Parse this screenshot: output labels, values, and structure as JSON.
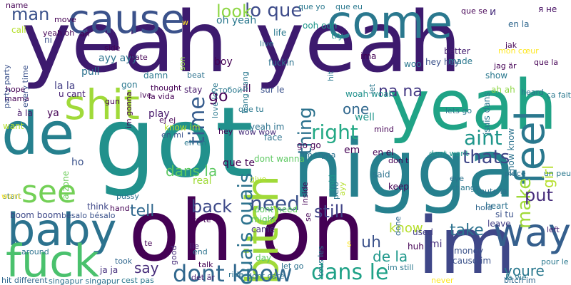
{
  "words": [
    {
      "text": "yeah yeah",
      "color": "#3d1a6e"
    },
    {
      "text": "got",
      "color": "#21918c"
    },
    {
      "text": "nigga",
      "color": "#26808e"
    },
    {
      "text": "oh oh",
      "color": "#440154"
    },
    {
      "text": "de",
      "color": "#26808e"
    },
    {
      "text": "yeah",
      "color": "#20a386"
    },
    {
      "text": "im",
      "color": "#3f4788"
    },
    {
      "text": "come",
      "color": "#2a788e"
    },
    {
      "text": "cause",
      "color": "#3b528b"
    },
    {
      "text": "shit",
      "color": "#a0da39"
    },
    {
      "text": "bitch",
      "color": "#a0da39"
    },
    {
      "text": "baby",
      "color": "#2c728e"
    },
    {
      "text": "fuck",
      "color": "#4ac16d"
    },
    {
      "text": "feel",
      "color": "#2a788e"
    },
    {
      "text": "see",
      "color": "#73d056"
    },
    {
      "text": "way",
      "color": "#355f8d"
    },
    {
      "text": "dont know",
      "color": "#31688e"
    },
    {
      "text": "dans le",
      "color": "#1fa187"
    },
    {
      "text": "time",
      "color": "#365c8d"
    },
    {
      "text": "ouais ouais",
      "color": "#2c728e"
    },
    {
      "text": "need",
      "color": "#3b528b"
    },
    {
      "text": "right",
      "color": "#22a884"
    },
    {
      "text": "make",
      "color": "#a0da39"
    },
    {
      "text": "thing",
      "color": "#2c728e"
    },
    {
      "text": "aint",
      "color": "#1f968b"
    },
    {
      "text": "lo que",
      "color": "#3e4c8a"
    },
    {
      "text": "look",
      "color": "#8ed645"
    },
    {
      "text": "man",
      "color": "#3b528b"
    },
    {
      "text": "go",
      "color": "#440154"
    },
    {
      "text": "thats",
      "color": "#3f4788"
    },
    {
      "text": "na na",
      "color": "#443983"
    },
    {
      "text": "back",
      "color": "#3e4a89"
    },
    {
      "text": "tell",
      "color": "#31688e"
    },
    {
      "text": "still",
      "color": "#414487"
    },
    {
      "text": "put",
      "color": "#472d7b"
    },
    {
      "text": "take",
      "color": "#2c728e"
    },
    {
      "text": "uh",
      "color": "#3b528b"
    },
    {
      "text": "de la",
      "color": "#1f988b"
    },
    {
      "text": "youre",
      "color": "#2a788e"
    },
    {
      "text": "say",
      "color": "#472d7b"
    },
    {
      "text": "dans la",
      "color": "#5ec962"
    },
    {
      "text": "girl",
      "color": "#b5de2b"
    },
    {
      "text": "know",
      "color": "#b5de2b"
    },
    {
      "text": "one",
      "color": "#31688e"
    },
    {
      "text": "oh yeah",
      "color": "#2a788e"
    },
    {
      "text": "la la",
      "color": "#433e85"
    },
    {
      "text": "ayy ayy",
      "color": "#2c728e"
    },
    {
      "text": "pull",
      "color": "#2c728e"
    },
    {
      "text": "play",
      "color": "#481a6c"
    },
    {
      "text": "boy",
      "color": "#440154"
    },
    {
      "text": "que te",
      "color": "#440154"
    },
    {
      "text": "em",
      "color": "#440154"
    },
    {
      "text": "mi",
      "color": "#46307e"
    },
    {
      "text": "ya",
      "color": "#440154"
    },
    {
      "text": "boom boom",
      "color": "#3e4989"
    },
    {
      "text": "real",
      "color": "#a0da39"
    },
    {
      "text": "think",
      "color": "#3f4788"
    },
    {
      "text": "came",
      "color": "#46307e"
    },
    {
      "text": "keep",
      "color": "#440154"
    },
    {
      "text": "said",
      "color": "#2c728e"
    },
    {
      "text": "face",
      "color": "#2c728e"
    },
    {
      "text": "ill",
      "color": "#440154"
    },
    {
      "text": "well",
      "color": "#1f968b"
    },
    {
      "text": "told",
      "color": "#1f968b"
    },
    {
      "text": "la zone",
      "color": "#6ccd5a"
    },
    {
      "text": "ho",
      "color": "#3b528b"
    },
    {
      "text": "want",
      "color": "#b5de2b"
    },
    {
      "text": "à la",
      "color": "#481a6c"
    },
    {
      "text": "u cant",
      "color": "#482173"
    },
    {
      "text": "gon",
      "color": "#2a788e"
    },
    {
      "text": "life",
      "color": "#2a788e"
    },
    {
      "text": "ooh ooh",
      "color": "#1f968b"
    },
    {
      "text": "try",
      "color": "#1f968b"
    },
    {
      "text": "woo",
      "color": "#2a788e"
    },
    {
      "text": "hey hey",
      "color": "#3b528b"
    },
    {
      "text": "jsuis dans",
      "color": "#2a788e"
    },
    {
      "text": "ima",
      "color": "#440154"
    },
    {
      "text": "better",
      "color": "#482173"
    },
    {
      "text": "made",
      "color": "#2a788e"
    },
    {
      "text": "en la",
      "color": "#31688e"
    },
    {
      "text": "и",
      "color": "#472d7b"
    },
    {
      "text": "я не",
      "color": "#471164"
    },
    {
      "text": "love love",
      "color": "#2a788e"
    },
    {
      "text": "fuckin",
      "color": "#2c728e"
    },
    {
      "text": "damn",
      "color": "#2a788e"
    },
    {
      "text": "call",
      "color": "#b5de2b"
    },
    {
      "text": "ni",
      "color": "#3b528b"
    },
    {
      "text": "stay",
      "color": "#481a6c"
    },
    {
      "text": "know im",
      "color": "#b5de2b"
    },
    {
      "text": "dont wanna",
      "color": "#5ec962"
    },
    {
      "text": "yeah im",
      "color": "#2c728e"
    },
    {
      "text": "woah woah",
      "color": "#21918c"
    },
    {
      "text": "sur le",
      "color": "#3b528b"
    },
    {
      "text": "show",
      "color": "#2a788e"
    },
    {
      "text": "ah ah",
      "color": "#8ed645"
    },
    {
      "text": "know know",
      "color": "#2c728e"
    },
    {
      "text": "heart",
      "color": "#2c728e"
    },
    {
      "text": "leave",
      "color": "#433e85"
    },
    {
      "text": "si tu",
      "color": "#3b528b"
    },
    {
      "text": "money",
      "color": "#3b528b"
    },
    {
      "text": "cause im",
      "color": "#3b528b"
    },
    {
      "text": "never",
      "color": "#fde725"
    },
    {
      "text": "im still",
      "color": "#2a788e"
    },
    {
      "text": "huh",
      "color": "#440154"
    },
    {
      "text": "used",
      "color": "#433e85"
    },
    {
      "text": "day",
      "color": "#5ec962"
    },
    {
      "text": "might",
      "color": "#5ec962"
    },
    {
      "text": "dont need",
      "color": "#5ec962"
    },
    {
      "text": "go go",
      "color": "#440154"
    },
    {
      "text": "tous les",
      "color": "#2a788e"
    },
    {
      "text": "ja ja",
      "color": "#46307e"
    },
    {
      "text": "talk",
      "color": "#440154"
    },
    {
      "text": "en el",
      "color": "#440154"
    },
    {
      "text": "pero",
      "color": "#2a788e"
    },
    {
      "text": "ayy",
      "color": "#b5de2b"
    },
    {
      "text": "place",
      "color": "#2c728e"
    },
    {
      "text": "eye",
      "color": "#2c728e"
    },
    {
      "text": "pussy",
      "color": "#2c728e"
    },
    {
      "text": "start",
      "color": "#2c728e"
    },
    {
      "text": "hand",
      "color": "#440154"
    },
    {
      "text": "toute la",
      "color": "#2c728e"
    },
    {
      "text": "hold",
      "color": "#31688e"
    },
    {
      "text": "lets go",
      "color": "#2a788e"
    },
    {
      "text": "dont want",
      "color": "#1f968b"
    },
    {
      "text": "im tryna",
      "color": "#2c728e"
    },
    {
      "text": "singapur singapur",
      "color": "#2c728e"
    },
    {
      "text": "hit different",
      "color": "#31688e"
    },
    {
      "text": "bésalo bésalo",
      "color": "#3b528b"
    },
    {
      "text": "around",
      "color": "#2c728e"
    },
    {
      "text": "took",
      "color": "#31688e"
    },
    {
      "text": "give",
      "color": "#b5de2b"
    },
    {
      "text": "change",
      "color": "#2a788e"
    },
    {
      "text": "done",
      "color": "#31688e"
    },
    {
      "text": "hey",
      "color": "#440154"
    },
    {
      "text": "wow wow",
      "color": "#472d7b"
    },
    {
      "text": "end",
      "color": "#2c728e"
    },
    {
      "text": "ride",
      "color": "#2c728e"
    },
    {
      "text": "dont care",
      "color": "#2c728e"
    },
    {
      "text": "let go",
      "color": "#2c728e"
    },
    {
      "text": "good",
      "color": "#472d7b"
    },
    {
      "text": "lie",
      "color": "#472d7b"
    },
    {
      "text": "si te",
      "color": "#440154"
    },
    {
      "text": "yo te",
      "color": "#440154"
    },
    {
      "text": "det är",
      "color": "#482173"
    },
    {
      "text": "cest pas",
      "color": "#2a788e"
    },
    {
      "text": "bitch im",
      "color": "#31688e"
    },
    {
      "text": "la vie",
      "color": "#2a788e"
    },
    {
      "text": "pour le",
      "color": "#2a788e"
    },
    {
      "text": "un peu",
      "color": "#2a788e"
    },
    {
      "text": "left",
      "color": "#482173"
    },
    {
      "text": "ça fait",
      "color": "#2a788e"
    },
    {
      "text": "heard",
      "color": "#2c728e"
    },
    {
      "text": "jag är",
      "color": "#440154"
    },
    {
      "text": "jak",
      "color": "#440154"
    },
    {
      "text": "mon cœur",
      "color": "#fde725"
    },
    {
      "text": "que la",
      "color": "#440154"
    },
    {
      "text": "que se",
      "color": "#440154"
    },
    {
      "text": "que eu",
      "color": "#2a788e"
    },
    {
      "text": "que yo",
      "color": "#2a788e"
    },
    {
      "text": "que tu",
      "color": "#2a788e"
    },
    {
      "text": "с тобой",
      "color": "#2a788e"
    },
    {
      "text": "bang bang",
      "color": "#2a788e"
    },
    {
      "text": "live",
      "color": "#2a788e"
    },
    {
      "text": "beat",
      "color": "#2c728e"
    },
    {
      "text": "son",
      "color": "#8ed645"
    },
    {
      "text": "thought",
      "color": "#440154"
    },
    {
      "text": "la vida",
      "color": "#440154"
    },
    {
      "text": "im gonna",
      "color": "#440154"
    },
    {
      "text": "gun",
      "color": "#440154"
    },
    {
      "text": "ive",
      "color": "#440154"
    },
    {
      "text": "ej ej",
      "color": "#440154"
    },
    {
      "text": "en mi",
      "color": "#3b528b"
    },
    {
      "text": "eh eh",
      "color": "#2a788e"
    },
    {
      "text": "wont",
      "color": "#fde725"
    },
    {
      "text": "mama",
      "color": "#440154"
    },
    {
      "text": "hope",
      "color": "#440154"
    },
    {
      "text": "every time",
      "color": "#3b528b"
    },
    {
      "text": "party party",
      "color": "#3b528b"
    },
    {
      "text": "name",
      "color": "#440154"
    },
    {
      "text": "move",
      "color": "#440154"
    },
    {
      "text": "ah",
      "color": "#440154"
    },
    {
      "text": "yeah oh",
      "color": "#440154"
    },
    {
      "text": "side",
      "color": "#440154"
    },
    {
      "text": "hate",
      "color": "#440154"
    },
    {
      "text": "w",
      "color": "#fde725"
    },
    {
      "text": "hit",
      "color": "#2a788e"
    },
    {
      "text": "let",
      "color": "#2a788e"
    },
    {
      "text": "mind",
      "color": "#440154"
    },
    {
      "text": "don t",
      "color": "#440154"
    },
    {
      "text": "se",
      "color": "#440154"
    },
    {
      "text": "inside",
      "color": "#440154"
    },
    {
      "text": "s",
      "color": "#fde725"
    }
  ]
}
